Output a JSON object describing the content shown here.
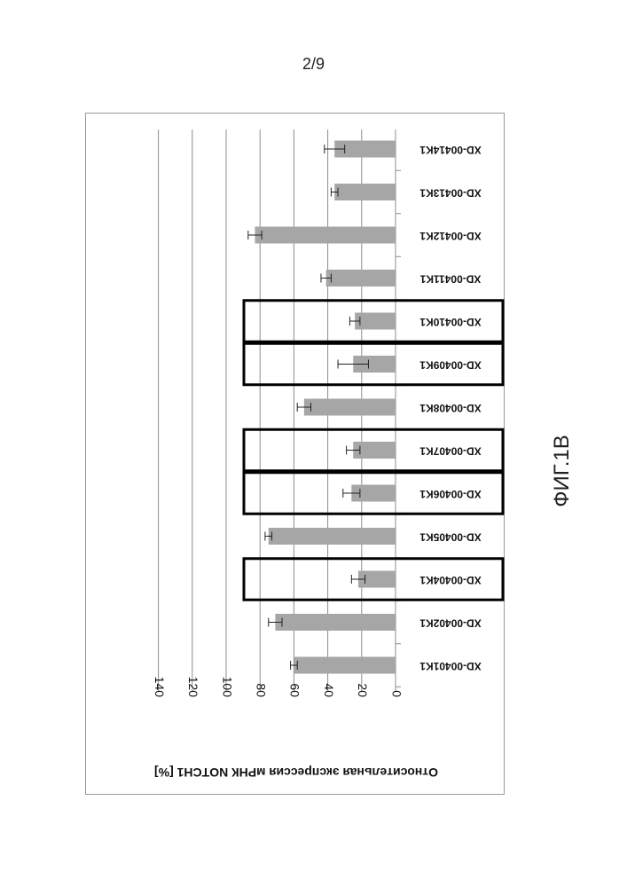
{
  "page": {
    "number": "2/9",
    "figure_label": "ФИГ.1В"
  },
  "chart_data": {
    "type": "bar",
    "orientation": "horizontal",
    "ylabel": "Относительная экспрессия мРНК NOTCH1 [%]",
    "ylim": [
      0,
      140
    ],
    "yticks": [
      0,
      20,
      40,
      60,
      80,
      100,
      120,
      140
    ],
    "grid": true,
    "categories": [
      "XD-00401K1",
      "XD-00402K1",
      "XD-00404K1",
      "XD-00405K1",
      "XD-00406K1",
      "XD-00407K1",
      "XD-00408K1",
      "XD-00409K1",
      "XD-00410K1",
      "XD-00411K1",
      "XD-00412K1",
      "XD-00413K1",
      "XD-00414K1"
    ],
    "values": [
      60,
      71,
      22,
      75,
      26,
      25,
      54,
      25,
      24,
      41,
      83,
      36,
      36
    ],
    "errors": [
      2,
      4,
      4,
      2,
      5,
      4,
      4,
      9,
      3,
      3,
      4,
      2,
      6
    ],
    "highlighted": [
      "XD-00404K1",
      "XD-00406K1",
      "XD-00407K1",
      "XD-00409K1",
      "XD-00410K1"
    ],
    "bar_color": "#a6a6a6",
    "highlight_color": "#000000"
  }
}
